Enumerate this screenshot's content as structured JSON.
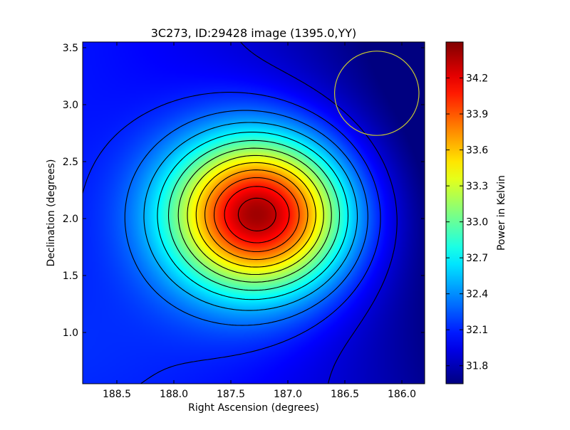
{
  "chart_data": {
    "type": "heatmap",
    "title": "3C273, ID:29428 image (1395.0,YY)",
    "xlabel": "Right Ascension (degrees)",
    "ylabel": "Declination (degrees)",
    "colorbar_label": "Power in Kelvin",
    "colormap": "jet",
    "xlim": [
      188.8,
      185.8
    ],
    "ylim": [
      0.55,
      3.55
    ],
    "x_ticks": [
      188.5,
      188.0,
      187.5,
      187.0,
      186.5,
      186.0
    ],
    "x_tick_labels": [
      "188.5",
      "188.0",
      "187.5",
      "187.0",
      "186.5",
      "186.0"
    ],
    "y_ticks": [
      1.0,
      1.5,
      2.0,
      2.5,
      3.0,
      3.5
    ],
    "y_tick_labels": [
      "1.0",
      "1.5",
      "2.0",
      "2.5",
      "3.0",
      "3.5"
    ],
    "color_range": [
      31.65,
      34.5
    ],
    "colorbar_ticks": [
      31.8,
      32.1,
      32.4,
      32.7,
      33.0,
      33.3,
      33.6,
      33.9,
      34.2
    ],
    "colorbar_tick_labels": [
      "31.8",
      "32.1",
      "32.4",
      "32.7",
      "33.0",
      "33.3",
      "33.6",
      "33.9",
      "34.2"
    ],
    "peak": {
      "ra": 187.25,
      "dec": 2.04,
      "value": 34.5
    },
    "contour_color": "#000000",
    "beam": {
      "ra": 186.22,
      "dec": 3.1,
      "radius_deg": 0.37,
      "color": "#c8c832"
    }
  }
}
